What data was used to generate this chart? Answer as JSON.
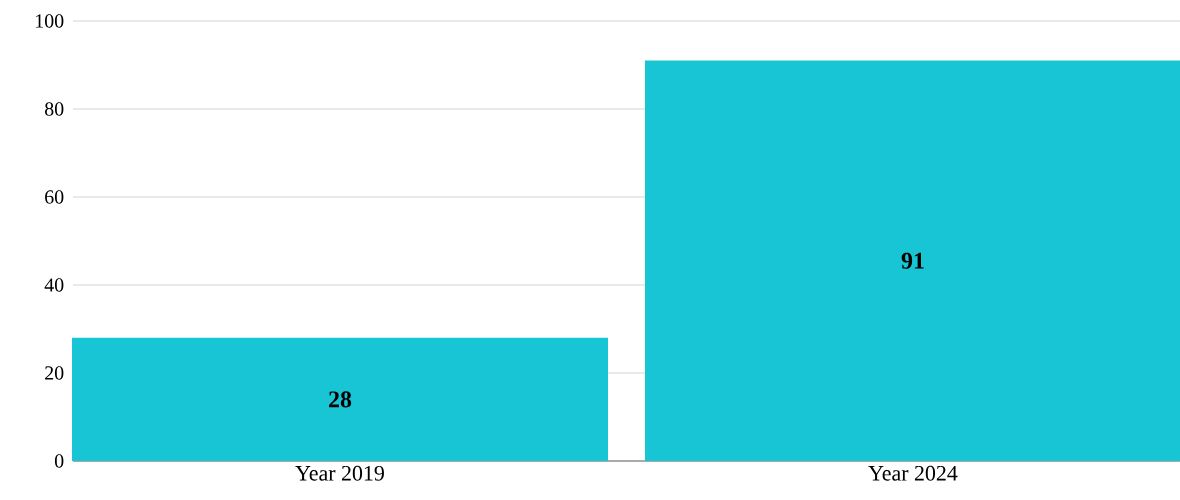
{
  "chart_data": {
    "type": "bar",
    "categories": [
      "Year 2019",
      "Year 2024"
    ],
    "values": [
      28,
      91
    ],
    "color": "#17c5d4",
    "ylim": [
      0,
      100
    ],
    "yticks": [
      0,
      20,
      40,
      60,
      80,
      100
    ],
    "grid": "y",
    "data_labels": true
  }
}
